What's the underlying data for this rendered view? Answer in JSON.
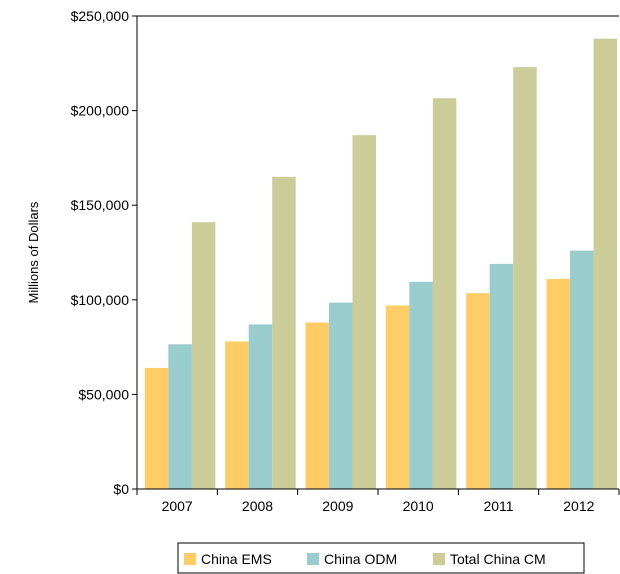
{
  "chart_data": {
    "type": "bar",
    "title": "",
    "xlabel": "",
    "ylabel": "Millions of Dollars",
    "categories": [
      "2007",
      "2008",
      "2009",
      "2010",
      "2011",
      "2012"
    ],
    "series": [
      {
        "name": "China EMS",
        "color": "#FFCC66",
        "values": [
          64000,
          78000,
          88000,
          97000,
          103500,
          111000
        ]
      },
      {
        "name": "China ODM",
        "color": "#99CCCC",
        "values": [
          76500,
          87000,
          98500,
          109500,
          119000,
          126000
        ]
      },
      {
        "name": "Total China CM",
        "color": "#CCCC99",
        "values": [
          141000,
          165000,
          187000,
          206500,
          223000,
          238000
        ]
      }
    ],
    "ylim": [
      0,
      250000
    ],
    "yticks": [
      0,
      50000,
      100000,
      150000,
      200000,
      250000
    ],
    "ytick_labels": [
      "$0",
      "$50,000",
      "$100,000",
      "$150,000",
      "$200,000",
      "$250,000"
    ],
    "grid": false,
    "legend_position": "bottom"
  }
}
